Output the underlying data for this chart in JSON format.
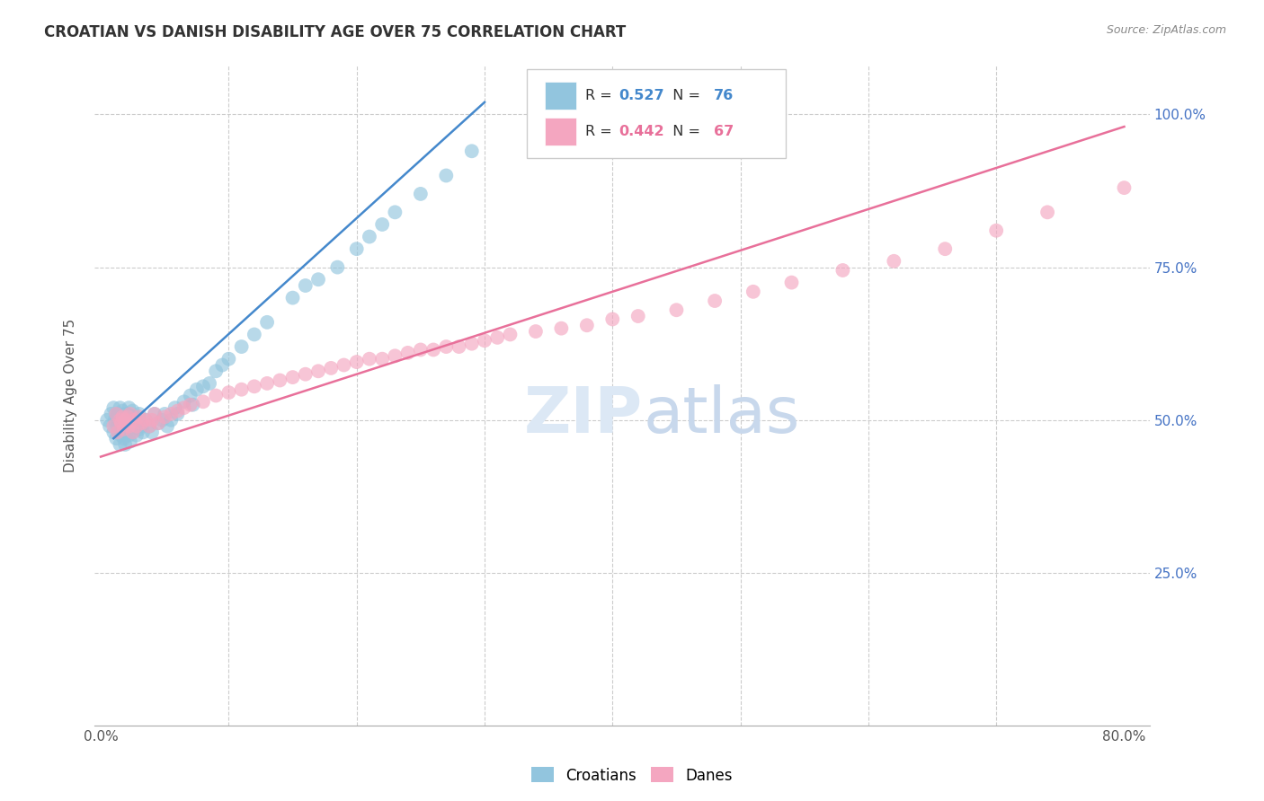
{
  "title": "CROATIAN VS DANISH DISABILITY AGE OVER 75 CORRELATION CHART",
  "source": "Source: ZipAtlas.com",
  "ylabel": "Disability Age Over 75",
  "xlim": [
    0.0,
    0.8
  ],
  "ylim": [
    0.0,
    1.08
  ],
  "xtick_positions": [
    0.0,
    0.1,
    0.2,
    0.3,
    0.4,
    0.5,
    0.6,
    0.7,
    0.8
  ],
  "xticklabels": [
    "0.0%",
    "",
    "",
    "",
    "",
    "",
    "",
    "",
    "80.0%"
  ],
  "ytick_positions": [
    0.0,
    0.25,
    0.5,
    0.75,
    1.0
  ],
  "yticklabels_right": [
    "",
    "25.0%",
    "50.0%",
    "75.0%",
    "100.0%"
  ],
  "croatian_R": 0.527,
  "croatian_N": 76,
  "danish_R": 0.442,
  "danish_N": 67,
  "blue_color": "#92c5de",
  "pink_color": "#f4a6c0",
  "blue_line_color": "#4488cc",
  "pink_line_color": "#e8709a",
  "legend_label_blue": "Croatians",
  "legend_label_pink": "Danes",
  "watermark": "ZIPatlas",
  "croatian_x": [
    0.005,
    0.007,
    0.008,
    0.01,
    0.01,
    0.011,
    0.012,
    0.012,
    0.013,
    0.013,
    0.014,
    0.014,
    0.015,
    0.015,
    0.015,
    0.016,
    0.016,
    0.017,
    0.017,
    0.018,
    0.018,
    0.019,
    0.019,
    0.02,
    0.02,
    0.02,
    0.021,
    0.021,
    0.022,
    0.022,
    0.023,
    0.023,
    0.024,
    0.025,
    0.025,
    0.026,
    0.027,
    0.028,
    0.03,
    0.03,
    0.032,
    0.033,
    0.035,
    0.038,
    0.04,
    0.042,
    0.045,
    0.048,
    0.05,
    0.052,
    0.055,
    0.058,
    0.06,
    0.065,
    0.07,
    0.072,
    0.075,
    0.08,
    0.085,
    0.09,
    0.095,
    0.1,
    0.11,
    0.12,
    0.13,
    0.15,
    0.16,
    0.17,
    0.185,
    0.2,
    0.21,
    0.22,
    0.23,
    0.25,
    0.27,
    0.29
  ],
  "croatian_y": [
    0.5,
    0.49,
    0.51,
    0.48,
    0.52,
    0.5,
    0.47,
    0.51,
    0.49,
    0.505,
    0.48,
    0.51,
    0.46,
    0.495,
    0.52,
    0.475,
    0.505,
    0.485,
    0.515,
    0.47,
    0.5,
    0.46,
    0.49,
    0.48,
    0.51,
    0.5,
    0.49,
    0.51,
    0.475,
    0.52,
    0.465,
    0.495,
    0.505,
    0.48,
    0.515,
    0.49,
    0.505,
    0.475,
    0.485,
    0.51,
    0.49,
    0.48,
    0.5,
    0.49,
    0.48,
    0.51,
    0.495,
    0.5,
    0.51,
    0.49,
    0.5,
    0.52,
    0.51,
    0.53,
    0.54,
    0.525,
    0.55,
    0.555,
    0.56,
    0.58,
    0.59,
    0.6,
    0.62,
    0.64,
    0.66,
    0.7,
    0.72,
    0.73,
    0.75,
    0.78,
    0.8,
    0.82,
    0.84,
    0.87,
    0.9,
    0.94
  ],
  "danish_x": [
    0.01,
    0.012,
    0.013,
    0.015,
    0.016,
    0.017,
    0.018,
    0.019,
    0.02,
    0.021,
    0.022,
    0.023,
    0.025,
    0.026,
    0.028,
    0.03,
    0.032,
    0.035,
    0.038,
    0.04,
    0.042,
    0.045,
    0.05,
    0.055,
    0.06,
    0.065,
    0.07,
    0.08,
    0.09,
    0.1,
    0.11,
    0.12,
    0.13,
    0.14,
    0.15,
    0.16,
    0.17,
    0.18,
    0.19,
    0.2,
    0.21,
    0.22,
    0.23,
    0.24,
    0.25,
    0.26,
    0.27,
    0.28,
    0.29,
    0.3,
    0.31,
    0.32,
    0.34,
    0.36,
    0.38,
    0.4,
    0.42,
    0.45,
    0.48,
    0.51,
    0.54,
    0.58,
    0.62,
    0.66,
    0.7,
    0.74,
    0.8
  ],
  "danish_y": [
    0.49,
    0.51,
    0.48,
    0.5,
    0.495,
    0.505,
    0.485,
    0.5,
    0.495,
    0.505,
    0.49,
    0.51,
    0.48,
    0.5,
    0.49,
    0.505,
    0.495,
    0.5,
    0.49,
    0.5,
    0.51,
    0.495,
    0.505,
    0.51,
    0.515,
    0.52,
    0.525,
    0.53,
    0.54,
    0.545,
    0.55,
    0.555,
    0.56,
    0.565,
    0.57,
    0.575,
    0.58,
    0.585,
    0.59,
    0.595,
    0.6,
    0.6,
    0.605,
    0.61,
    0.615,
    0.615,
    0.62,
    0.62,
    0.625,
    0.63,
    0.635,
    0.64,
    0.645,
    0.65,
    0.655,
    0.665,
    0.67,
    0.68,
    0.695,
    0.71,
    0.725,
    0.745,
    0.76,
    0.78,
    0.81,
    0.84,
    0.88
  ]
}
